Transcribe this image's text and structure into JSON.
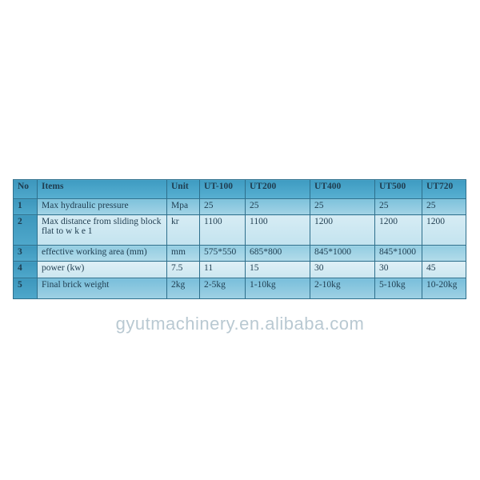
{
  "table": {
    "headers": [
      "No",
      "Items",
      "Unit",
      "UT-100",
      "UT200",
      "UT400",
      "UT500",
      "UT720"
    ],
    "rows": [
      [
        "1",
        "Max hydraulic pressure",
        "Mpa",
        "25",
        "25",
        "25",
        "25",
        "25"
      ],
      [
        "2",
        "Max distance from sliding block flat to w k e 1",
        "kr",
        "1100",
        "1100",
        "1200",
        "1200",
        "1200"
      ],
      [
        "3",
        "effective working area (mm)",
        "mm",
        "575*550",
        "685*800",
        "845*1000",
        "845*1000",
        ""
      ],
      [
        "4",
        "power (kw)",
        "7.5",
        "11",
        "15",
        "30",
        "30",
        "45"
      ],
      [
        "5",
        "Final brick weight",
        "2kg",
        "2-5kg",
        "1-10kg",
        "2-10kg",
        "5-10kg",
        "10-20kg"
      ]
    ]
  },
  "watermark": "gyutmachinery.en.alibaba.com",
  "colors": {
    "header": "#4aa3c6",
    "border": "#2e6f8c",
    "text": "#1f3d50"
  }
}
